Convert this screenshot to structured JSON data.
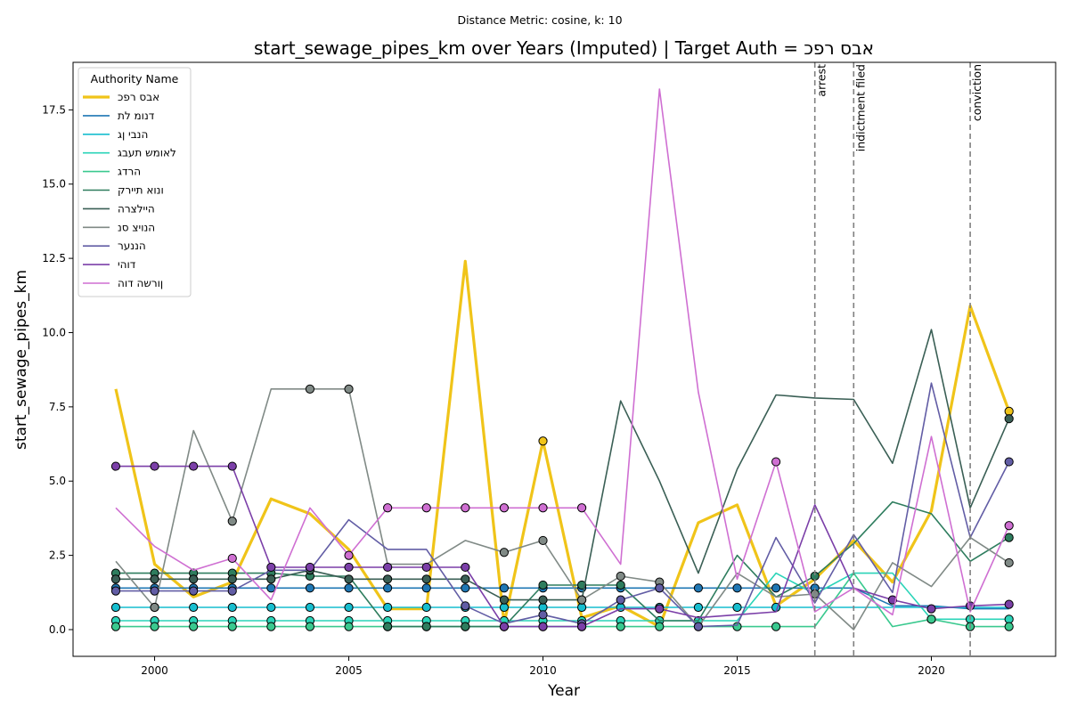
{
  "chart_data": {
    "type": "line",
    "suptitle": "Distance Metric: cosine, k: 10",
    "title": "start_sewage_pipes_km over Years (Imputed) | Target Auth = אבס רפכ",
    "xlabel": "Year",
    "ylabel": "start_sewage_pipes_km",
    "xlim": [
      1997.9,
      2023.2
    ],
    "ylim": [
      -0.9,
      19.1
    ],
    "x_ticks": [
      2000,
      2005,
      2010,
      2015,
      2020
    ],
    "x_tick_labels": [
      "2000",
      "2005",
      "2010",
      "2015",
      "2020"
    ],
    "y_ticks": [
      0.0,
      2.5,
      5.0,
      7.5,
      10.0,
      12.5,
      15.0,
      17.5
    ],
    "y_tick_labels": [
      "0.0",
      "2.5",
      "5.0",
      "7.5",
      "10.0",
      "12.5",
      "15.0",
      "17.5"
    ],
    "grid": false,
    "legend": {
      "title": "Authority Name",
      "location": "upper left"
    },
    "events": [
      {
        "x": 2017,
        "label": "arrest"
      },
      {
        "x": 2018,
        "label": "indictment filed"
      },
      {
        "x": 2021,
        "label": "conviction"
      }
    ],
    "x": [
      1999,
      2000,
      2001,
      2002,
      2003,
      2004,
      2005,
      2006,
      2007,
      2008,
      2009,
      2010,
      2011,
      2012,
      2013,
      2014,
      2015,
      2016,
      2017,
      2018,
      2019,
      2020,
      2021,
      2022
    ],
    "series": [
      {
        "name": "אבס רפכ",
        "color": "#f0c419",
        "target": true,
        "values": [
          8.1,
          2.2,
          1.1,
          1.6,
          4.4,
          3.9,
          2.7,
          0.7,
          0.7,
          12.4,
          0.2,
          6.35,
          0.4,
          0.8,
          0.1,
          3.6,
          4.2,
          0.8,
          1.7,
          3.0,
          1.6,
          4.0,
          10.9,
          7.35
        ],
        "imputed": [
          11,
          23
        ]
      },
      {
        "name": "דנומ לת",
        "color": "#1f77b4",
        "values": [
          1.4,
          1.4,
          1.4,
          1.4,
          1.4,
          1.4,
          1.4,
          1.4,
          1.4,
          1.4,
          1.4,
          1.4,
          1.4,
          1.4,
          1.4,
          1.4,
          1.4,
          1.4,
          1.4,
          1.4,
          0.8,
          0.8,
          0.7,
          0.7
        ],
        "imputed": [
          0,
          1,
          2,
          3,
          4,
          5,
          6,
          7,
          8,
          9,
          10,
          11,
          12,
          13,
          14,
          15,
          16,
          17,
          18
        ]
      },
      {
        "name": "הנבי ןג",
        "color": "#17becf",
        "values": [
          0.75,
          0.75,
          0.75,
          0.75,
          0.75,
          0.75,
          0.75,
          0.75,
          0.75,
          0.75,
          0.75,
          0.75,
          0.75,
          0.75,
          0.75,
          0.75,
          0.75,
          0.75,
          0.75,
          0.75,
          0.75,
          0.75,
          0.75,
          0.75
        ],
        "imputed": [
          0,
          1,
          2,
          3,
          4,
          5,
          6,
          7,
          8,
          9,
          10,
          11,
          12,
          13,
          14,
          15,
          16,
          17
        ]
      },
      {
        "name": "לאומש תעבג",
        "color": "#2ad4b8",
        "values": [
          0.3,
          0.3,
          0.3,
          0.3,
          0.3,
          0.3,
          0.3,
          0.3,
          0.3,
          0.3,
          0.3,
          0.3,
          0.3,
          0.3,
          0.3,
          0.3,
          0.3,
          1.9,
          1.2,
          1.9,
          1.9,
          0.35,
          0.35,
          0.35
        ],
        "imputed": [
          0,
          1,
          2,
          3,
          4,
          5,
          6,
          7,
          8,
          9,
          10,
          11,
          12,
          13,
          14,
          15,
          21,
          22,
          23
        ]
      },
      {
        "name": "הרדג",
        "color": "#3ac98f",
        "values": [
          0.1,
          0.1,
          0.1,
          0.1,
          0.1,
          0.1,
          0.1,
          0.1,
          0.1,
          0.1,
          0.1,
          0.1,
          0.1,
          0.1,
          0.1,
          0.1,
          0.1,
          0.1,
          0.1,
          1.9,
          0.1,
          0.35,
          0.1,
          0.1
        ],
        "imputed": [
          0,
          1,
          2,
          3,
          4,
          5,
          6,
          7,
          8,
          9,
          10,
          11,
          12,
          13,
          14,
          15,
          16,
          17,
          21,
          22,
          23
        ]
      },
      {
        "name": "ונוא תיירק",
        "color": "#2e7d5e",
        "values": [
          1.9,
          1.9,
          1.9,
          1.9,
          1.9,
          1.8,
          1.8,
          0.1,
          0.1,
          0.1,
          0.1,
          1.5,
          1.5,
          1.5,
          0.3,
          0.3,
          2.5,
          1.1,
          1.8,
          2.9,
          4.3,
          3.9,
          2.3,
          3.1
        ],
        "imputed": [
          0,
          1,
          2,
          3,
          4,
          5,
          7,
          8,
          9,
          10,
          11,
          12,
          13,
          18,
          23
        ]
      },
      {
        "name": "היילצרה",
        "color": "#3a5f55",
        "values": [
          1.7,
          1.7,
          1.7,
          1.7,
          1.7,
          2.0,
          1.7,
          1.7,
          1.7,
          1.7,
          1.0,
          1.0,
          1.0,
          7.7,
          5.0,
          1.9,
          5.4,
          7.9,
          7.8,
          7.75,
          5.6,
          10.1,
          4.1,
          7.1
        ],
        "imputed": [
          0,
          1,
          2,
          3,
          4,
          5,
          6,
          7,
          8,
          9,
          10,
          11,
          12,
          23
        ]
      },
      {
        "name": "הנויצ סנ",
        "color": "#808a86",
        "values": [
          2.3,
          0.75,
          6.7,
          3.65,
          8.1,
          8.1,
          8.1,
          2.2,
          2.2,
          3.0,
          2.6,
          3.0,
          1.0,
          1.8,
          1.6,
          0.1,
          1.9,
          1.1,
          1.2,
          0.0,
          2.25,
          1.45,
          3.1,
          2.25
        ],
        "imputed": [
          1,
          3,
          5,
          6,
          10,
          11,
          12,
          13,
          14,
          18,
          23
        ]
      },
      {
        "name": "הננער",
        "color": "#625da5",
        "values": [
          1.3,
          1.3,
          1.3,
          1.3,
          2.0,
          2.0,
          3.7,
          2.7,
          2.7,
          0.8,
          0.2,
          0.5,
          0.2,
          1.0,
          1.4,
          0.1,
          0.15,
          3.1,
          0.9,
          3.2,
          1.25,
          8.3,
          3.1,
          5.65
        ],
        "imputed": [
          0,
          1,
          2,
          3,
          9,
          11,
          12,
          13,
          14,
          15,
          23
        ]
      },
      {
        "name": "דוהי",
        "color": "#7b3fa8",
        "values": [
          5.5,
          5.5,
          5.5,
          5.5,
          2.1,
          2.1,
          2.1,
          2.1,
          2.1,
          2.1,
          0.1,
          0.1,
          0.1,
          0.7,
          0.7,
          0.4,
          0.5,
          0.6,
          4.2,
          1.4,
          1.0,
          0.7,
          0.8,
          0.85
        ],
        "imputed": [
          0,
          1,
          2,
          3,
          4,
          5,
          6,
          7,
          8,
          9,
          10,
          11,
          12,
          14,
          20,
          21,
          22,
          23
        ]
      },
      {
        "name": "ןורשה דוה",
        "color": "#cf6fd2",
        "values": [
          4.1,
          2.8,
          2.0,
          2.4,
          1.0,
          4.1,
          2.5,
          4.1,
          4.1,
          4.1,
          4.1,
          4.1,
          4.1,
          2.2,
          18.2,
          8.0,
          1.7,
          5.65,
          0.6,
          1.4,
          0.5,
          6.5,
          0.6,
          3.5
        ],
        "imputed": [
          3,
          6,
          7,
          8,
          9,
          10,
          11,
          12,
          17,
          23
        ]
      }
    ]
  }
}
